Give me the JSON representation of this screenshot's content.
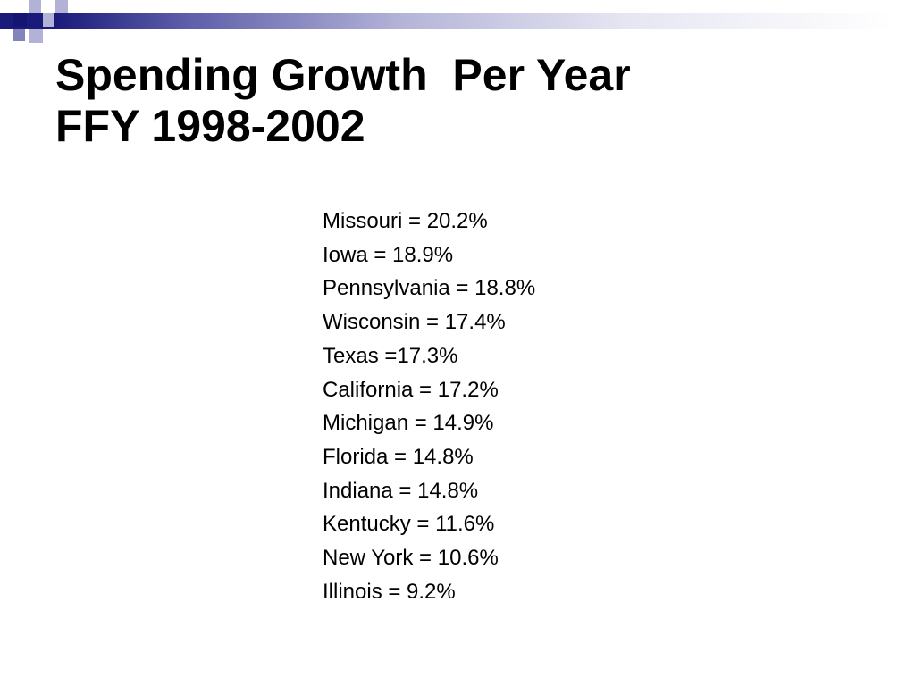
{
  "slide": {
    "title_lines": [
      "Spending Growth  Per Year",
      "FFY 1998-2002"
    ],
    "items": [
      "Missouri = 20.2%",
      "Iowa = 18.9%",
      "Pennsylvania = 18.8%",
      "Wisconsin = 17.4%",
      "Texas =17.3%",
      "California = 17.2%",
      "Michigan = 14.9%",
      "Florida = 14.8%",
      "Indiana = 14.8%",
      "Kentucky = 11.6%",
      "New York = 10.6%",
      "Illinois = 9.2%"
    ]
  },
  "theme": {
    "accent_dark": "#141472",
    "accent_light": "#b2b2d6",
    "text": "#000000",
    "background": "#ffffff"
  }
}
